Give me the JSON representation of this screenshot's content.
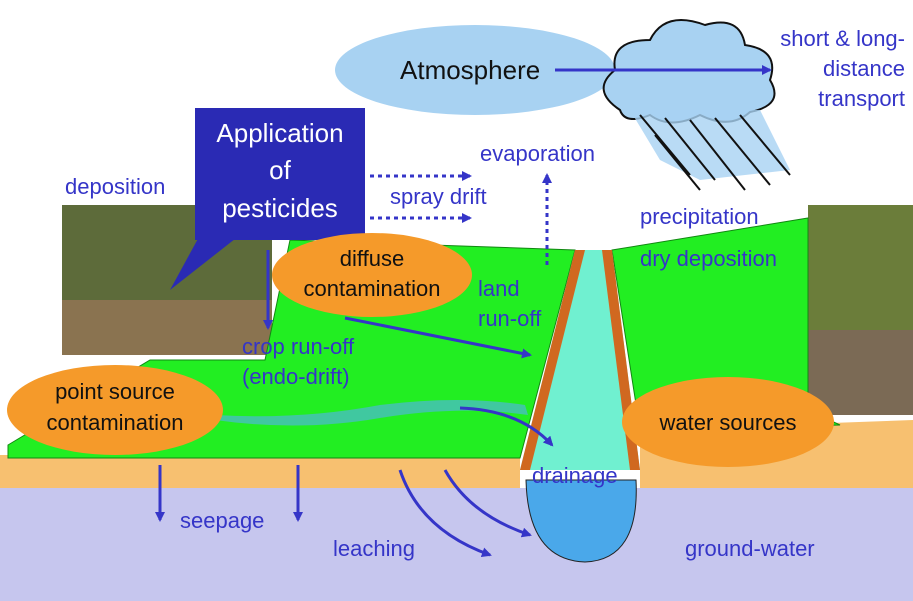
{
  "atmosphere": "Atmosphere",
  "transport": [
    "short & long-",
    "distance",
    "transport"
  ],
  "application": [
    "Application",
    "of",
    "pesticides"
  ],
  "deposition": "deposition",
  "evaporation": "evaporation",
  "spray_drift": "spray drift",
  "precipitation": "precipitation",
  "dry_deposition": "dry deposition",
  "diffuse_contamination": [
    "diffuse",
    "contamination"
  ],
  "land_runoff": [
    "land",
    "run-off"
  ],
  "crop_runoff": [
    "crop run-off",
    "(endo-drift)"
  ],
  "point_source_contamination": [
    "point source",
    "contamination"
  ],
  "water_sources": "water sources",
  "drainage": "drainage",
  "seepage": "seepage",
  "leaching": "leaching",
  "ground_water": "ground-water"
}
